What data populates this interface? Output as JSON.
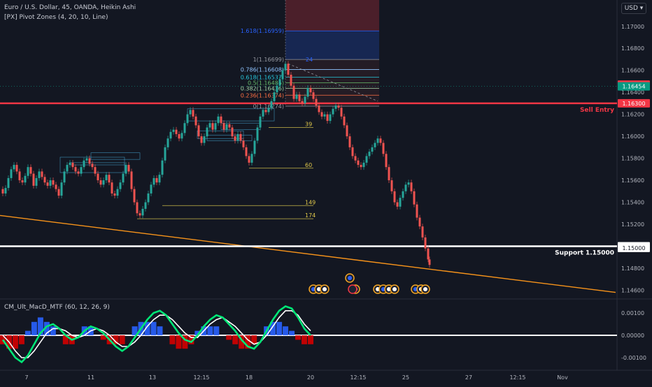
{
  "header": {
    "symbol_line": "Euro / U.S. Dollar, 45, OANDA, Heikin Ashi",
    "indicator_line": "[PX] Pivot Zones (4, 20, 10, Line)",
    "currency": "USD"
  },
  "macd_label": "CM_Ult_MacD_MTF (60, 12, 26, 9)",
  "colors": {
    "background": "#131722",
    "bull": "#26a69a",
    "bear": "#ef5350",
    "sell_line": "#f23645",
    "support_line": "#ffffff",
    "trend_line": "#f7931a",
    "macd_fast": "#00e676",
    "macd_slow": "#ff1744"
  },
  "chart_data": {
    "type": "candlestick",
    "title": "Euro / U.S. Dollar, 45, OANDA, Heikin Ashi",
    "price_ticks": [
      "1.17000",
      "1.16800",
      "1.16600",
      "1.16400",
      "1.16200",
      "1.16000",
      "1.15800",
      "1.15600",
      "1.15400",
      "1.15200",
      "1.14800",
      "1.14600"
    ],
    "ylim": [
      1.1452,
      1.1724
    ],
    "time_ticks": [
      "7",
      "11",
      "13",
      "12:15",
      "18",
      "20",
      "12:15",
      "25",
      "27",
      "12:15",
      "Nov"
    ],
    "price_series": [
      {
        "x": 0,
        "y": 1.1552
      },
      {
        "x": 4,
        "y": 1.1548
      },
      {
        "x": 8,
        "y": 1.1553
      },
      {
        "x": 12,
        "y": 1.1562
      },
      {
        "x": 16,
        "y": 1.157
      },
      {
        "x": 20,
        "y": 1.1574
      },
      {
        "x": 24,
        "y": 1.1568
      },
      {
        "x": 28,
        "y": 1.156
      },
      {
        "x": 32,
        "y": 1.1558
      },
      {
        "x": 36,
        "y": 1.1564
      },
      {
        "x": 40,
        "y": 1.1572
      },
      {
        "x": 44,
        "y": 1.1566
      },
      {
        "x": 48,
        "y": 1.1555
      },
      {
        "x": 52,
        "y": 1.1562
      },
      {
        "x": 56,
        "y": 1.1568
      },
      {
        "x": 60,
        "y": 1.1563
      },
      {
        "x": 64,
        "y": 1.1558
      },
      {
        "x": 68,
        "y": 1.1555
      },
      {
        "x": 72,
        "y": 1.156
      },
      {
        "x": 76,
        "y": 1.1556
      },
      {
        "x": 80,
        "y": 1.1552
      },
      {
        "x": 84,
        "y": 1.1546
      },
      {
        "x": 88,
        "y": 1.1558
      },
      {
        "x": 92,
        "y": 1.1568
      },
      {
        "x": 96,
        "y": 1.1574
      },
      {
        "x": 100,
        "y": 1.1576
      },
      {
        "x": 104,
        "y": 1.1572
      },
      {
        "x": 108,
        "y": 1.1568
      },
      {
        "x": 112,
        "y": 1.1566
      },
      {
        "x": 116,
        "y": 1.1572
      },
      {
        "x": 120,
        "y": 1.1578
      },
      {
        "x": 124,
        "y": 1.158
      },
      {
        "x": 128,
        "y": 1.1575
      },
      {
        "x": 132,
        "y": 1.1572
      },
      {
        "x": 136,
        "y": 1.1566
      },
      {
        "x": 140,
        "y": 1.156
      },
      {
        "x": 144,
        "y": 1.1556
      },
      {
        "x": 148,
        "y": 1.156
      },
      {
        "x": 152,
        "y": 1.1565
      },
      {
        "x": 156,
        "y": 1.1558
      },
      {
        "x": 160,
        "y": 1.1548
      },
      {
        "x": 164,
        "y": 1.1546
      },
      {
        "x": 168,
        "y": 1.1552
      },
      {
        "x": 172,
        "y": 1.1558
      },
      {
        "x": 176,
        "y": 1.1566
      },
      {
        "x": 180,
        "y": 1.1574
      },
      {
        "x": 184,
        "y": 1.1568
      },
      {
        "x": 188,
        "y": 1.1552
      },
      {
        "x": 192,
        "y": 1.154
      },
      {
        "x": 196,
        "y": 1.153
      },
      {
        "x": 200,
        "y": 1.1528
      },
      {
        "x": 204,
        "y": 1.1534
      },
      {
        "x": 208,
        "y": 1.154
      },
      {
        "x": 212,
        "y": 1.1548
      },
      {
        "x": 216,
        "y": 1.1556
      },
      {
        "x": 220,
        "y": 1.1562
      },
      {
        "x": 224,
        "y": 1.1558
      },
      {
        "x": 228,
        "y": 1.1565
      },
      {
        "x": 232,
        "y": 1.1578
      },
      {
        "x": 236,
        "y": 1.159
      },
      {
        "x": 240,
        "y": 1.1598
      },
      {
        "x": 244,
        "y": 1.1604
      },
      {
        "x": 248,
        "y": 1.1606
      },
      {
        "x": 252,
        "y": 1.1602
      },
      {
        "x": 256,
        "y": 1.1598
      },
      {
        "x": 260,
        "y": 1.1603
      },
      {
        "x": 264,
        "y": 1.1612
      },
      {
        "x": 268,
        "y": 1.162
      },
      {
        "x": 272,
        "y": 1.1624
      },
      {
        "x": 276,
        "y": 1.1618
      },
      {
        "x": 280,
        "y": 1.161
      },
      {
        "x": 284,
        "y": 1.16
      },
      {
        "x": 288,
        "y": 1.1594
      },
      {
        "x": 292,
        "y": 1.16
      },
      {
        "x": 296,
        "y": 1.1608
      },
      {
        "x": 300,
        "y": 1.1612
      },
      {
        "x": 304,
        "y": 1.1606
      },
      {
        "x": 308,
        "y": 1.1612
      },
      {
        "x": 312,
        "y": 1.1618
      },
      {
        "x": 316,
        "y": 1.1612
      },
      {
        "x": 320,
        "y": 1.1606
      },
      {
        "x": 324,
        "y": 1.1611
      },
      {
        "x": 328,
        "y": 1.1608
      },
      {
        "x": 332,
        "y": 1.16
      },
      {
        "x": 336,
        "y": 1.1596
      },
      {
        "x": 340,
        "y": 1.1602
      },
      {
        "x": 344,
        "y": 1.1596
      },
      {
        "x": 348,
        "y": 1.159
      },
      {
        "x": 352,
        "y": 1.1582
      },
      {
        "x": 356,
        "y": 1.1576
      },
      {
        "x": 360,
        "y": 1.1584
      },
      {
        "x": 364,
        "y": 1.1596
      },
      {
        "x": 368,
        "y": 1.1608
      },
      {
        "x": 372,
        "y": 1.1618
      },
      {
        "x": 376,
        "y": 1.1624
      },
      {
        "x": 380,
        "y": 1.1622
      },
      {
        "x": 384,
        "y": 1.1626
      },
      {
        "x": 388,
        "y": 1.1632
      },
      {
        "x": 392,
        "y": 1.164
      },
      {
        "x": 396,
        "y": 1.1646
      },
      {
        "x": 400,
        "y": 1.1652
      },
      {
        "x": 404,
        "y": 1.166
      },
      {
        "x": 408,
        "y": 1.1666
      },
      {
        "x": 412,
        "y": 1.1656
      },
      {
        "x": 416,
        "y": 1.1646
      },
      {
        "x": 420,
        "y": 1.1634
      },
      {
        "x": 424,
        "y": 1.1638
      },
      {
        "x": 428,
        "y": 1.1632
      },
      {
        "x": 432,
        "y": 1.163
      },
      {
        "x": 436,
        "y": 1.1636
      },
      {
        "x": 440,
        "y": 1.1644
      },
      {
        "x": 444,
        "y": 1.164
      },
      {
        "x": 448,
        "y": 1.1634
      },
      {
        "x": 452,
        "y": 1.1628
      },
      {
        "x": 456,
        "y": 1.1622
      },
      {
        "x": 460,
        "y": 1.1618
      },
      {
        "x": 464,
        "y": 1.162
      },
      {
        "x": 468,
        "y": 1.1614
      },
      {
        "x": 472,
        "y": 1.162
      },
      {
        "x": 476,
        "y": 1.1625
      },
      {
        "x": 480,
        "y": 1.1628
      },
      {
        "x": 484,
        "y": 1.1626
      },
      {
        "x": 488,
        "y": 1.1618
      },
      {
        "x": 492,
        "y": 1.161
      },
      {
        "x": 496,
        "y": 1.16
      },
      {
        "x": 500,
        "y": 1.159
      },
      {
        "x": 504,
        "y": 1.1582
      },
      {
        "x": 508,
        "y": 1.1578
      },
      {
        "x": 512,
        "y": 1.1574
      },
      {
        "x": 516,
        "y": 1.1572
      },
      {
        "x": 520,
        "y": 1.1576
      },
      {
        "x": 524,
        "y": 1.1582
      },
      {
        "x": 528,
        "y": 1.1586
      },
      {
        "x": 532,
        "y": 1.159
      },
      {
        "x": 536,
        "y": 1.1594
      },
      {
        "x": 540,
        "y": 1.1598
      },
      {
        "x": 544,
        "y": 1.1594
      },
      {
        "x": 548,
        "y": 1.1584
      },
      {
        "x": 552,
        "y": 1.1572
      },
      {
        "x": 556,
        "y": 1.156
      },
      {
        "x": 560,
        "y": 1.155
      },
      {
        "x": 564,
        "y": 1.154
      },
      {
        "x": 568,
        "y": 1.1536
      },
      {
        "x": 572,
        "y": 1.1544
      },
      {
        "x": 576,
        "y": 1.155
      },
      {
        "x": 580,
        "y": 1.1556
      },
      {
        "x": 584,
        "y": 1.1558
      },
      {
        "x": 588,
        "y": 1.155
      },
      {
        "x": 592,
        "y": 1.1538
      },
      {
        "x": 596,
        "y": 1.1526
      },
      {
        "x": 600,
        "y": 1.1518
      },
      {
        "x": 604,
        "y": 1.1508
      },
      {
        "x": 608,
        "y": 1.1498
      },
      {
        "x": 612,
        "y": 1.1488
      },
      {
        "x": 614,
        "y": 1.1483
      }
    ],
    "fib_levels": [
      {
        "label": "1.618(1.16959)",
        "price": 1.16959,
        "color": "#2962ff"
      },
      {
        "label": "1(1.16699)",
        "price": 1.16699,
        "color": "#9598a1"
      },
      {
        "label": "0.786(1.16608)",
        "price": 1.16608,
        "color": "#8fc4ff"
      },
      {
        "label": "0.618(1.16537)",
        "price": 1.16537,
        "color": "#26c6da"
      },
      {
        "label": "0.5(1.16486)",
        "price": 1.16486,
        "color": "#66bb6a"
      },
      {
        "label": "0.382(1.16436)",
        "price": 1.16436,
        "color": "#a5d6a7"
      },
      {
        "label": "0.236(1.16374)",
        "price": 1.16374,
        "color": "#ff7043"
      },
      {
        "label": "0(1.16274)",
        "price": 1.16274,
        "color": "#9598a1"
      }
    ],
    "fib_top_label": "24",
    "pivot_labels": [
      {
        "label": "39",
        "price": 1.1608
      },
      {
        "label": "60",
        "price": 1.1571
      },
      {
        "label": "149",
        "price": 1.1537
      },
      {
        "label": "174",
        "price": 1.1525
      }
    ],
    "levels": [
      {
        "name": "Sell Entry",
        "price": 1.163
      },
      {
        "name": "Support 1.15000",
        "price": 1.15
      }
    ],
    "price_badges": [
      {
        "text": "1.16470",
        "color": "#f23645",
        "price": 1.1647
      },
      {
        "text": "1.16454",
        "color": "#089981",
        "price": 1.16454
      },
      {
        "text": "1.16300",
        "color": "#f23645",
        "price": 1.163
      },
      {
        "text": "1.15000",
        "color": "#ffffff",
        "price": 1.15
      },
      {
        "text": "1.15000",
        "color": "#ffffff",
        "price": 1.14985
      }
    ],
    "trend_line": {
      "from": {
        "x": 0,
        "y": 1.1528
      },
      "to": {
        "x": 880,
        "y": 1.1458
      }
    },
    "macd": {
      "ticks": [
        "0.00100",
        "0.00000",
        "-0.00100"
      ],
      "ylim": [
        -0.0015,
        0.0015
      ],
      "fast": [
        -0.0002,
        -0.0006,
        -0.001,
        -0.0012,
        -0.0009,
        -0.0004,
        0.0001,
        0.0004,
        0.0005,
        0.0003,
        0.0,
        -0.0002,
        -0.0001,
        0.0002,
        0.0004,
        0.0003,
        0.0001,
        -0.0002,
        -0.0005,
        -0.0007,
        -0.0005,
        -0.0001,
        0.0003,
        0.0007,
        0.001,
        0.0011,
        0.0009,
        0.0005,
        0.0001,
        -0.0002,
        -0.0003,
        0.0,
        0.0004,
        0.0007,
        0.0009,
        0.0008,
        0.0005,
        0.0002,
        -0.0002,
        -0.0005,
        -0.0006,
        -0.0003,
        0.0002,
        0.0007,
        0.0011,
        0.0013,
        0.0012,
        0.0008,
        0.0003,
        0.0
      ],
      "slow": [
        0.0,
        -0.0003,
        -0.0007,
        -0.001,
        -0.001,
        -0.0007,
        -0.0003,
        0.0001,
        0.0003,
        0.0003,
        0.0002,
        0.0,
        -0.0001,
        0.0,
        0.0002,
        0.0003,
        0.0002,
        0.0,
        -0.0003,
        -0.0005,
        -0.0005,
        -0.0003,
        0.0,
        0.0004,
        0.0007,
        0.0009,
        0.0009,
        0.0007,
        0.0004,
        0.0001,
        -0.0001,
        -0.0001,
        0.0002,
        0.0005,
        0.0007,
        0.0008,
        0.0006,
        0.0004,
        0.0001,
        -0.0002,
        -0.0004,
        -0.0003,
        0.0,
        0.0004,
        0.0008,
        0.0011,
        0.0011,
        0.0009,
        0.0005,
        0.0002
      ]
    },
    "event_markers": 12
  }
}
